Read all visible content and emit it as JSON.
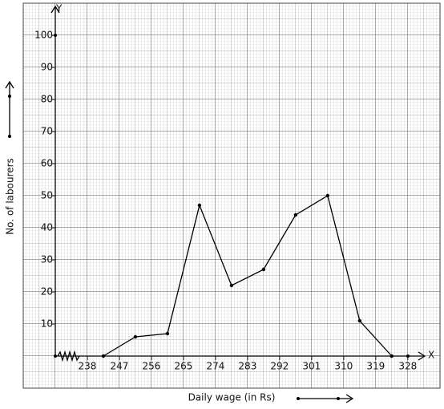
{
  "chart_data": {
    "type": "line",
    "x_label": "Daily wage (in Rs)",
    "y_label": "No. of labourers",
    "x_axis_name": "X",
    "y_axis_name": "Y",
    "x": [
      242.5,
      251.5,
      260.5,
      269.5,
      278.5,
      287.5,
      296.5,
      305.5,
      314.5,
      323.5
    ],
    "series": [
      {
        "color": "#000000",
        "values": [
          0,
          6,
          7,
          47,
          22,
          27,
          44,
          50,
          11,
          0
        ]
      }
    ],
    "xlim": [
      229,
      333
    ],
    "ylim": [
      0,
      109
    ],
    "xticks": [
      238,
      247,
      256,
      265,
      274,
      283,
      292,
      301,
      310,
      319,
      328
    ],
    "yticks": [
      10,
      20,
      30,
      40,
      50,
      60,
      70,
      80,
      90,
      100
    ],
    "grid": true
  }
}
